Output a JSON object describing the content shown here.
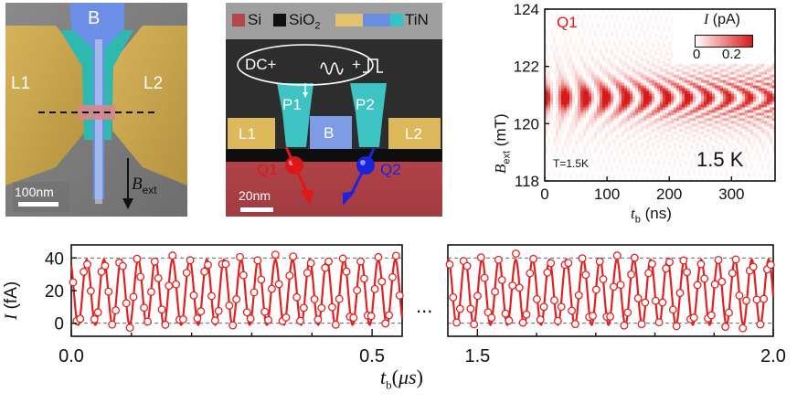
{
  "panel_a": {
    "labels": {
      "gate_b": "B",
      "lead_left": "L1",
      "lead_right": "L2"
    },
    "scalebar": "100nm",
    "field_label_main": "B",
    "field_label_sub": "ext"
  },
  "panel_b": {
    "legend": [
      {
        "label": "Si",
        "color": "#b4474c"
      },
      {
        "label": "SiO",
        "sub": "2",
        "color": "#111111"
      },
      {
        "label": "",
        "color": "#e3c26b"
      },
      {
        "label": "",
        "color": "#6b8fe0"
      },
      {
        "label": "TiN",
        "color": "#2fc6c6"
      }
    ],
    "signal_label": "DC+",
    "signal_plus": "+",
    "gates": {
      "p1": "P1",
      "p2": "P2",
      "l1": "L1",
      "b": "B",
      "l2": "L2"
    },
    "qubits": {
      "q1": "Q1",
      "q2": "Q2"
    },
    "scalebar": "20nm",
    "colors": {
      "q1": "#e01818",
      "q2": "#1a24e0"
    }
  },
  "panel_c": {
    "qubit": "Q1",
    "temperature_small": "T=1.5K",
    "temperature_big": "1.5 K",
    "colorbar_label": "I (pA)",
    "colorbar_ticks": [
      "0",
      "0.2"
    ],
    "ylabel_main": "B",
    "ylabel_sub": "ext",
    "ylabel_unit": " (mT)",
    "xlabel_main": "t",
    "xlabel_sub": "b",
    "xlabel_unit": " (ns)",
    "yticks": [
      "118",
      "120",
      "122",
      "124"
    ],
    "xticks": [
      "0",
      "100",
      "200",
      "300"
    ]
  },
  "chart_data": [
    {
      "type": "line",
      "ylabel": "I (fA)",
      "xlabel": "t_b (μs)",
      "xlim_segments": [
        [
          0.0,
          0.55
        ],
        [
          1.45,
          2.0
        ]
      ],
      "ylim": [
        -8,
        48
      ],
      "yticks": [
        "0",
        "20",
        "40"
      ],
      "xticks_left": [
        "0.0",
        "0.5"
      ],
      "xticks_right": [
        "1.5",
        "2.0"
      ],
      "break_label": "...",
      "oscillation": {
        "period_us": 0.0285,
        "offset_fA": 19,
        "amplitude_fA": 20
      },
      "grid": "dashed lines at 0 and 40",
      "color": "#e52020"
    },
    {
      "type": "heatmap",
      "x_range_ns": [
        0,
        370
      ],
      "y_range_mT": [
        118,
        124
      ],
      "resonance_center_mT": 120.9,
      "colorbar_range_pA": [
        0,
        0.3
      ]
    }
  ]
}
